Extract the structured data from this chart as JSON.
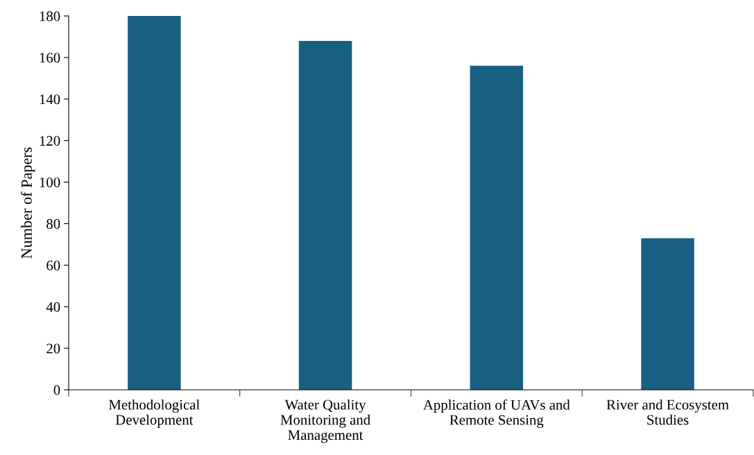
{
  "chart_data": {
    "type": "bar",
    "ylabel": "Number of Papers",
    "categories": [
      "Methodological\nDevelopment",
      "Water Quality\nMonitoring and\nManagement",
      "Application of UAVs and\nRemote Sensing",
      "River and Ecosystem\nStudies"
    ],
    "values": [
      180,
      168,
      156,
      73
    ],
    "color": "#185f82",
    "ylim": [
      0,
      180
    ],
    "yticks": [
      0,
      20,
      40,
      60,
      80,
      100,
      120,
      140,
      160,
      180
    ],
    "grid": false,
    "legend": false
  }
}
